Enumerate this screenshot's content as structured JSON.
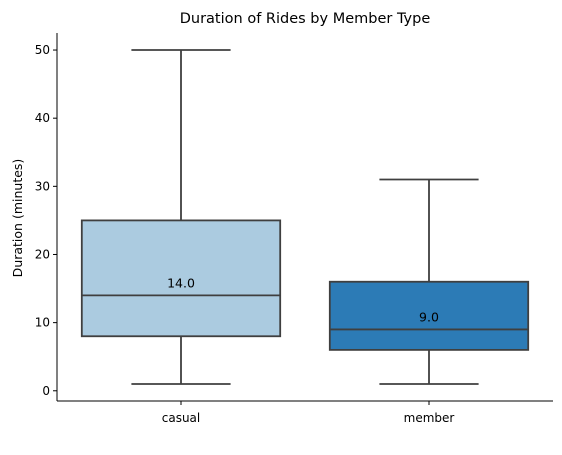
{
  "chart_data": {
    "type": "box",
    "title": "Duration of Rides by Member Type",
    "xlabel": "",
    "ylabel": "Duration (minutes)",
    "ylim": [
      -1.5,
      52.5
    ],
    "yticks": [
      0,
      10,
      20,
      30,
      40,
      50
    ],
    "grid": false,
    "categories": [
      "casual",
      "member"
    ],
    "boxes": [
      {
        "category": "casual",
        "whisker_low": 1,
        "q1": 8,
        "median": 14,
        "q3": 25,
        "whisker_high": 50,
        "median_label": "14.0",
        "color": "#abcbe0"
      },
      {
        "category": "member",
        "whisker_low": 1,
        "q1": 6,
        "median": 9,
        "q3": 16,
        "whisker_high": 31,
        "median_label": "9.0",
        "color": "#2c7bb6"
      }
    ],
    "line_color": "#3f3f3f"
  }
}
